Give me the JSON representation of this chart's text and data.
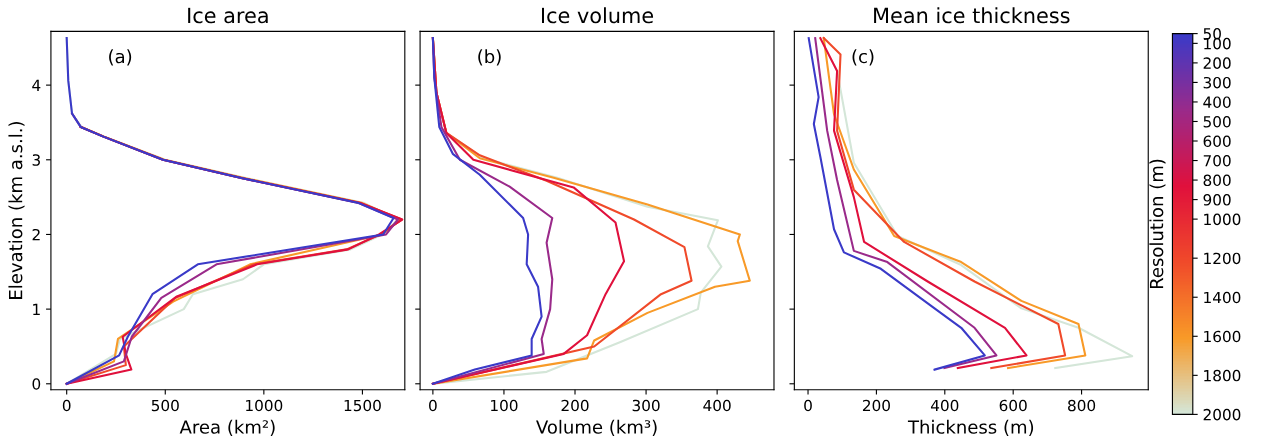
{
  "chart_data": [
    {
      "type": "line",
      "title": "Ice area",
      "xlabel": "Area (km²)",
      "ylabel": "Elevation (km a.s.l.)",
      "xlim": [
        -80,
        1715
      ],
      "xticks": [
        0,
        500,
        1000,
        1500
      ],
      "ylim": [
        -0.08,
        4.72
      ],
      "yticks": [
        0,
        1,
        2,
        3,
        4
      ],
      "grid": false,
      "legend": false,
      "marker": "none",
      "line_style": "solid",
      "annotations": [
        "(a)"
      ],
      "series": [
        {
          "color": "#d4e6d8",
          "x": [
            0,
            250,
            270,
            594,
            640,
            894,
            1000,
            1440,
            1600,
            1680,
            1510,
            920,
            500,
            200,
            75,
            27,
            8,
            0
          ],
          "values": [
            0,
            0.4,
            0.6,
            1.0,
            1.2,
            1.4,
            1.6,
            1.8,
            2.0,
            2.2,
            2.42,
            2.75,
            3.0,
            3.3,
            3.44,
            3.62,
            4.06,
            4.63
          ]
        },
        {
          "color": "#f89a28",
          "x": [
            0,
            240,
            260,
            540,
            930,
            1600,
            1690,
            1500,
            910,
            495,
            190,
            72
          ],
          "values": [
            0,
            0.3,
            0.6,
            1.1,
            1.6,
            2.0,
            2.2,
            2.42,
            2.75,
            3.0,
            3.31,
            3.44
          ]
        },
        {
          "color": "#f04a2a",
          "x": [
            0,
            300,
            290,
            550,
            950,
            1420,
            1590,
            1700,
            1490,
            900,
            490,
            188,
            71
          ],
          "values": [
            0,
            0.25,
            0.5,
            1.15,
            1.6,
            1.8,
            2.0,
            2.2,
            2.42,
            2.75,
            3.0,
            3.31,
            3.44
          ]
        },
        {
          "color": "#e0103c",
          "x": [
            0,
            328,
            300,
            284,
            559,
            966,
            1428,
            1584,
            1702,
            1490,
            896,
            488,
            186,
            71
          ],
          "values": [
            0,
            0.19,
            0.4,
            0.63,
            1.17,
            1.6,
            1.8,
            2.0,
            2.2,
            2.42,
            2.75,
            3.0,
            3.31,
            3.44
          ]
        },
        {
          "color": "#9a2a8a",
          "x": [
            0,
            290,
            330,
            480,
            760,
            1620,
            1680,
            1481,
            896,
            488,
            186,
            71,
            27
          ],
          "values": [
            0,
            0.3,
            0.63,
            1.15,
            1.6,
            2.0,
            2.2,
            2.42,
            2.75,
            3.0,
            3.31,
            3.44,
            3.62
          ]
        },
        {
          "color": "#3a3ac8",
          "x": [
            0,
            266,
            310,
            435,
            665,
            1605,
            1658,
            1481,
            896,
            488,
            186,
            71,
            27,
            8,
            0
          ],
          "values": [
            0,
            0.38,
            0.63,
            1.2,
            1.6,
            2.0,
            2.22,
            2.42,
            2.75,
            3.0,
            3.31,
            3.44,
            3.62,
            4.06,
            4.63
          ]
        }
      ]
    },
    {
      "type": "line",
      "title": "Ice volume",
      "xlabel": "Volume (km³)",
      "xlim": [
        -18,
        480
      ],
      "xticks": [
        0,
        100,
        200,
        300,
        400
      ],
      "ylim": [
        -0.08,
        4.72
      ],
      "yticks": [
        0,
        1,
        2,
        3,
        4
      ],
      "tick_labels": "x",
      "grid": false,
      "legend": false,
      "marker": "none",
      "line_style": "solid",
      "annotations": [
        "(b)"
      ],
      "series": [
        {
          "color": "#d4e6d8",
          "x": [
            0,
            160,
            264,
            373,
            377,
            406,
            387,
            401,
            302,
            175,
            71,
            19,
            5,
            0
          ],
          "values": [
            0,
            0.16,
            0.56,
            1.0,
            1.22,
            1.57,
            1.84,
            2.19,
            2.37,
            2.76,
            3.02,
            3.36,
            3.9,
            4.63
          ]
        },
        {
          "color": "#f89a28",
          "x": [
            0,
            217,
            227,
            302,
            397,
            446,
            429,
            432,
            302,
            170,
            66,
            19,
            5,
            0
          ],
          "values": [
            0,
            0.34,
            0.58,
            0.95,
            1.3,
            1.38,
            1.91,
            2.0,
            2.4,
            2.76,
            3.02,
            3.36,
            3.9,
            4.63
          ]
        },
        {
          "color": "#f04a2a",
          "x": [
            0,
            227,
            321,
            364,
            354,
            283,
            160,
            66,
            19,
            5,
            0
          ],
          "values": [
            0,
            0.5,
            1.2,
            1.38,
            1.83,
            2.2,
            2.72,
            3.06,
            3.36,
            3.9,
            4.63
          ]
        },
        {
          "color": "#e0103c",
          "x": [
            0,
            184,
            217,
            243,
            269,
            257,
            198,
            57,
            19,
            5,
            0
          ],
          "values": [
            0,
            0.4,
            0.65,
            1.2,
            1.64,
            2.16,
            2.63,
            3.0,
            3.36,
            3.9,
            4.63
          ]
        },
        {
          "color": "#9a2a8a",
          "x": [
            0,
            156,
            153,
            165,
            168,
            160,
            168,
            108,
            38,
            12,
            2,
            0
          ],
          "values": [
            0,
            0.4,
            0.6,
            1.0,
            1.4,
            1.89,
            2.22,
            2.64,
            3.0,
            3.44,
            4.1,
            4.63
          ]
        },
        {
          "color": "#3a3ac8",
          "x": [
            0,
            59,
            139,
            139,
            153,
            148,
            132,
            134,
            127,
            108,
            66,
            28,
            9,
            2,
            0
          ],
          "values": [
            0,
            0.19,
            0.38,
            0.6,
            0.9,
            1.3,
            1.6,
            2.0,
            2.22,
            2.4,
            2.8,
            3.08,
            3.44,
            4.1,
            4.63
          ]
        }
      ]
    },
    {
      "type": "line",
      "title": "Mean ice thickness",
      "xlabel": "Thickness (m)",
      "xlim": [
        -40,
        995
      ],
      "xticks": [
        0,
        200,
        400,
        600,
        800
      ],
      "ylim": [
        -0.08,
        4.72
      ],
      "yticks": [
        0,
        1,
        2,
        3,
        4
      ],
      "tick_labels": "x",
      "grid": false,
      "legend": false,
      "marker": "none",
      "line_style": "solid",
      "annotations": [
        "(c)"
      ],
      "clabel": "Resolution (m)",
      "clim": [
        2000,
        50
      ],
      "cticks": [
        50,
        100,
        200,
        300,
        400,
        500,
        600,
        700,
        800,
        900,
        1000,
        1200,
        1400,
        1600,
        1800,
        2000
      ],
      "series": [
        {
          "color": "#d4e6d8",
          "x": [
            723,
            948,
            791,
            624,
            448,
            262,
            134,
            85
          ],
          "values": [
            0.21,
            0.37,
            0.75,
            1.01,
            1.59,
            1.98,
            2.96,
            4.19
          ]
        },
        {
          "color": "#f89a28",
          "x": [
            585,
            811,
            791,
            624,
            448,
            252,
            134,
            76,
            46
          ],
          "values": [
            0.21,
            0.38,
            0.8,
            1.11,
            1.63,
            1.98,
            2.87,
            3.61,
            4.63
          ]
        },
        {
          "color": "#f04a2a",
          "x": [
            536,
            752,
            732,
            487,
            281,
            134,
            85,
            95,
            46
          ],
          "values": [
            0.21,
            0.38,
            0.8,
            1.37,
            1.9,
            2.6,
            3.39,
            4.41,
            4.63
          ]
        },
        {
          "color": "#e0103c",
          "x": [
            438,
            639,
            576,
            350,
            164,
            134,
            76,
            85,
            36
          ],
          "values": [
            0.21,
            0.38,
            0.75,
            1.37,
            1.9,
            2.5,
            3.39,
            4.19,
            4.63
          ]
        },
        {
          "color": "#9a2a8a",
          "x": [
            399,
            551,
            487,
            232,
            134,
            85,
            56,
            21
          ],
          "values": [
            0.21,
            0.38,
            0.75,
            1.63,
            1.78,
            2.73,
            3.39,
            4.63
          ]
        },
        {
          "color": "#3a3ac8",
          "x": [
            370,
            517,
            448,
            370,
            213,
            105,
            76,
            36,
            17,
            31,
            2
          ],
          "values": [
            0.19,
            0.38,
            0.75,
            1.01,
            1.54,
            1.76,
            2.07,
            3.04,
            3.48,
            3.84,
            4.63
          ]
        }
      ]
    }
  ]
}
